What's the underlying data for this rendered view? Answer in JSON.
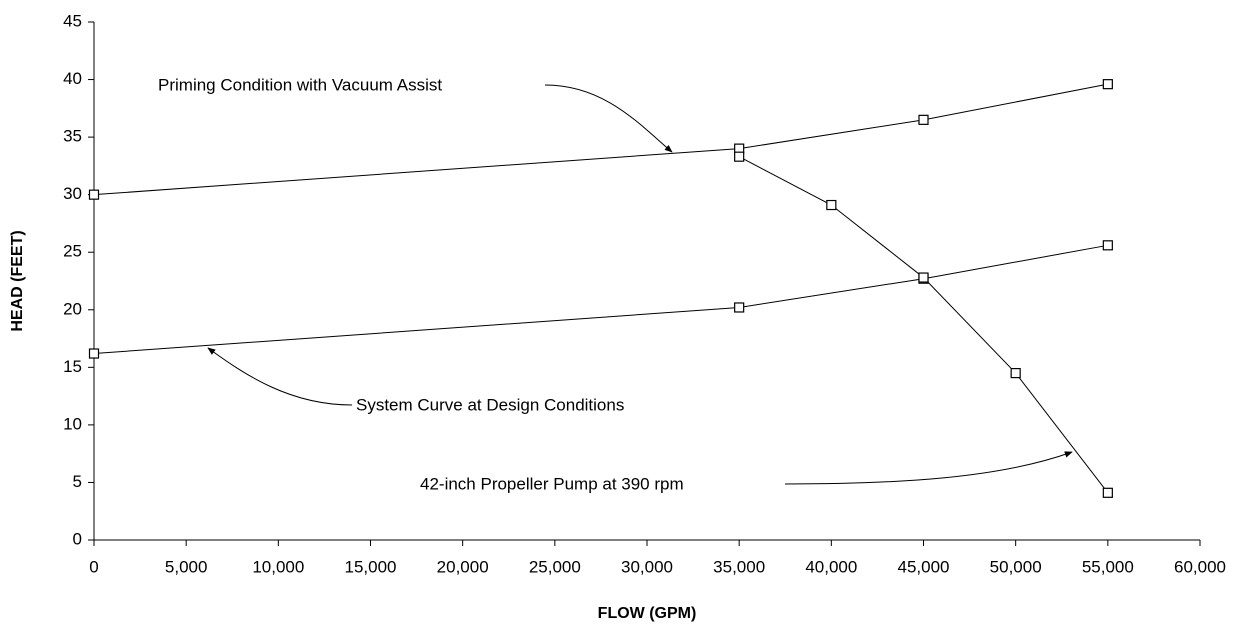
{
  "chart_data": {
    "type": "line",
    "xlabel": "FLOW (GPM)",
    "ylabel": "HEAD (FEET)",
    "xlim": [
      0,
      60000
    ],
    "ylim": [
      0,
      45
    ],
    "xticks": [
      0,
      {
        "value": 5000,
        "label": "5,000"
      },
      {
        "value": 10000,
        "label": "10,000"
      },
      {
        "value": 15000,
        "label": "15,000"
      },
      {
        "value": 20000,
        "label": "20,000"
      },
      {
        "value": 25000,
        "label": "25,000"
      },
      {
        "value": 30000,
        "label": "30,000"
      },
      {
        "value": 35000,
        "label": "35,000"
      },
      {
        "value": 40000,
        "label": "40,000"
      },
      {
        "value": 45000,
        "label": "45,000"
      },
      {
        "value": 50000,
        "label": "50,000"
      },
      {
        "value": 55000,
        "label": "55,000"
      },
      {
        "value": 60000,
        "label": "60,000"
      }
    ],
    "yticks": [
      0,
      5,
      10,
      15,
      20,
      25,
      30,
      35,
      40,
      45
    ],
    "grid": false,
    "series": [
      {
        "name": "Priming Condition with Vacuum Assist",
        "color": "#000000",
        "x": [
          0,
          35000,
          45000,
          55000
        ],
        "values": [
          30,
          34,
          36.5,
          39.6
        ]
      },
      {
        "name": "System Curve at Design Conditions",
        "color": "#000000",
        "x": [
          0,
          35000,
          45000,
          55000
        ],
        "values": [
          16.2,
          20.2,
          22.7,
          25.6
        ]
      },
      {
        "name": "42-inch Propeller Pump at 390 rpm",
        "color": "#000000",
        "x": [
          35000,
          40000,
          45000,
          50000,
          55000
        ],
        "values": [
          33.3,
          29.1,
          22.8,
          14.5,
          4.1
        ]
      }
    ]
  }
}
